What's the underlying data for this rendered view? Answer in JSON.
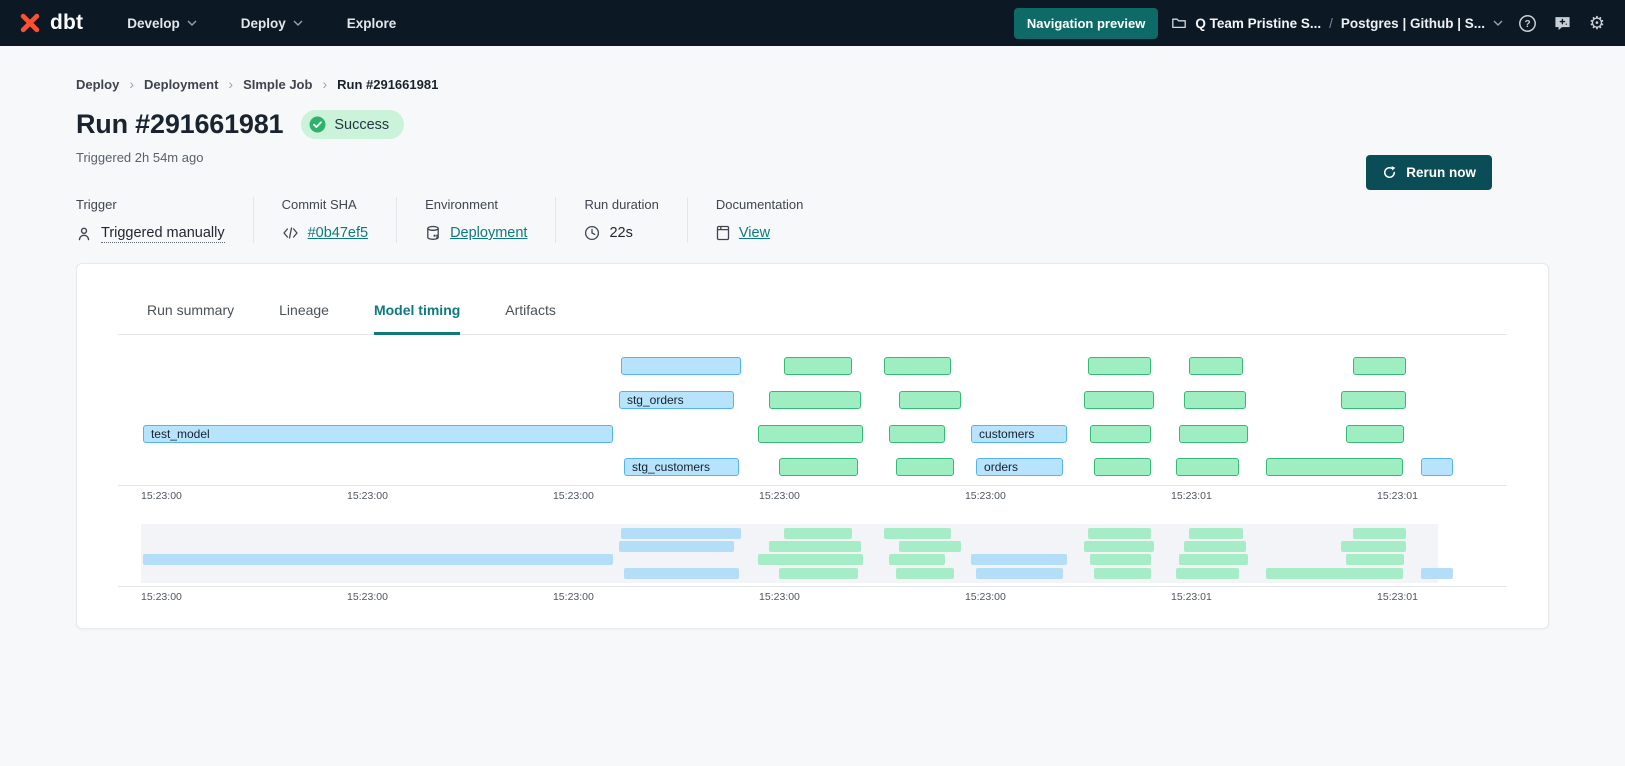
{
  "colors": {
    "header_bg": "#0d1825",
    "accent_teal": "#0d6a66",
    "link_teal": "#0e7a80",
    "success_bg": "#caf3da",
    "success_check": "#2fb26b",
    "brand_orange": "#ff4f2e",
    "blue_fill": "#b7e3fc",
    "blue_border": "#55b3f3",
    "green_fill": "#9feec1",
    "green_border": "#38b877",
    "mini_blue": "#b4ddf8",
    "mini_green": "#a6edc7",
    "page_bg": "#f7f8f9"
  },
  "header": {
    "brand": "dbt",
    "nav": [
      {
        "label": "Develop",
        "chevron": true
      },
      {
        "label": "Deploy",
        "chevron": true
      },
      {
        "label": "Explore",
        "chevron": false
      }
    ],
    "preview_button": "Navigation preview",
    "account": "Q Team Pristine S...",
    "separator": "/",
    "project": "Postgres | Github | S..."
  },
  "breadcrumb": {
    "separator": "›",
    "items": [
      "Deploy",
      "Deployment",
      "SImple Job",
      "Run #291661981"
    ]
  },
  "run": {
    "title": "Run #291661981",
    "status": "Success",
    "triggered": "Triggered 2h 54m ago",
    "rerun_button": "Rerun now"
  },
  "meta": [
    {
      "label": "Trigger",
      "value": "Triggered manually",
      "icon": "person-icon",
      "link": false,
      "dotted": true
    },
    {
      "label": "Commit SHA",
      "value": "#0b47ef5",
      "icon": "code-icon",
      "link": true,
      "dotted": false
    },
    {
      "label": "Environment",
      "value": "Deployment",
      "icon": "database-icon",
      "link": true,
      "dotted": false
    },
    {
      "label": "Run duration",
      "value": "22s",
      "icon": "clock-icon",
      "link": false,
      "dotted": false
    },
    {
      "label": "Documentation",
      "value": "View",
      "icon": "document-icon",
      "link": true,
      "dotted": false
    }
  ],
  "tabs": [
    {
      "label": "Run summary",
      "active": false
    },
    {
      "label": "Lineage",
      "active": false
    },
    {
      "label": "Model timing",
      "active": true
    },
    {
      "label": "Artifacts",
      "active": false
    }
  ],
  "chart_data": {
    "type": "gantt",
    "x_ticks": [
      {
        "label": "15:23:00",
        "pct": 0
      },
      {
        "label": "15:23:00",
        "pct": 15.61
      },
      {
        "label": "15:23:00",
        "pct": 31.21
      },
      {
        "label": "15:23:00",
        "pct": 46.82
      },
      {
        "label": "15:23:00",
        "pct": 62.42
      },
      {
        "label": "15:23:01",
        "pct": 78.03
      },
      {
        "label": "15:23:01",
        "pct": 93.64
      }
    ],
    "rows": [
      [
        {
          "x": 36.36,
          "w": 9.09,
          "c": "blue"
        },
        {
          "x": 48.71,
          "w": 5.15,
          "c": "green"
        },
        {
          "x": 56.29,
          "w": 5.08,
          "c": "green"
        },
        {
          "x": 71.74,
          "w": 4.77,
          "c": "green"
        },
        {
          "x": 79.39,
          "w": 4.09,
          "c": "green"
        },
        {
          "x": 91.82,
          "w": 4.02,
          "c": "green"
        }
      ],
      [
        {
          "x": 36.21,
          "w": 8.71,
          "c": "blue",
          "label": "stg_orders"
        },
        {
          "x": 47.58,
          "w": 6.97,
          "c": "green"
        },
        {
          "x": 57.42,
          "w": 4.7,
          "c": "green"
        },
        {
          "x": 71.44,
          "w": 5.3,
          "c": "green"
        },
        {
          "x": 79.02,
          "w": 4.7,
          "c": "green"
        },
        {
          "x": 90.91,
          "w": 4.92,
          "c": "green"
        }
      ],
      [
        {
          "x": 0.15,
          "w": 35.61,
          "c": "blue",
          "label": "test_model"
        },
        {
          "x": 46.74,
          "w": 7.95,
          "c": "green"
        },
        {
          "x": 56.67,
          "w": 4.24,
          "c": "green"
        },
        {
          "x": 62.88,
          "w": 7.27,
          "c": "blue",
          "label": "customers"
        },
        {
          "x": 71.89,
          "w": 4.62,
          "c": "green"
        },
        {
          "x": 78.64,
          "w": 5.23,
          "c": "green"
        },
        {
          "x": 91.29,
          "w": 4.39,
          "c": "green"
        }
      ],
      [
        {
          "x": 36.59,
          "w": 8.71,
          "c": "blue",
          "label": "stg_customers"
        },
        {
          "x": 48.33,
          "w": 5.98,
          "c": "green"
        },
        {
          "x": 57.2,
          "w": 4.39,
          "c": "green"
        },
        {
          "x": 63.26,
          "w": 6.59,
          "c": "blue",
          "label": "orders"
        },
        {
          "x": 72.2,
          "w": 4.32,
          "c": "green"
        },
        {
          "x": 78.41,
          "w": 4.77,
          "c": "green"
        },
        {
          "x": 85.23,
          "w": 10.38,
          "c": "green"
        },
        {
          "x": 96.97,
          "w": 2.42,
          "c": "blue"
        }
      ]
    ]
  }
}
